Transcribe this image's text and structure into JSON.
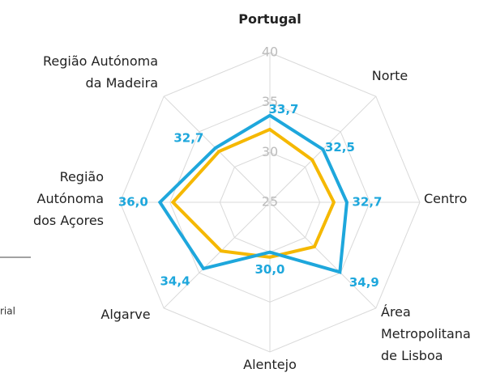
{
  "chart_data": {
    "type": "radar",
    "categories": [
      "Portugal",
      "Norte",
      "Centro",
      "Área\nMetropolitana\nde Lisboa",
      "Alentejo",
      "Algarve",
      "Região\nAutónoma\ndos Açores",
      "Região Autónoma\nda Madeira"
    ],
    "series": [
      {
        "color": "#f5b800",
        "values": [
          32.3,
          31.0,
          31.4,
          31.3,
          30.5,
          31.9,
          34.7,
          32.2
        ]
      },
      {
        "color": "#1ea7dc",
        "values": [
          33.7,
          32.5,
          32.7,
          34.9,
          30.0,
          34.4,
          36.0,
          32.7
        ],
        "value_labels": [
          "33,7",
          "32,5",
          "32,7",
          "34,9",
          "30,0",
          "34,4",
          "36,0",
          "32,7"
        ]
      }
    ],
    "rlim": [
      25,
      40
    ],
    "rticks": [
      25,
      30,
      35,
      40
    ],
    "grid": true,
    "annotations": [
      "rial"
    ]
  }
}
